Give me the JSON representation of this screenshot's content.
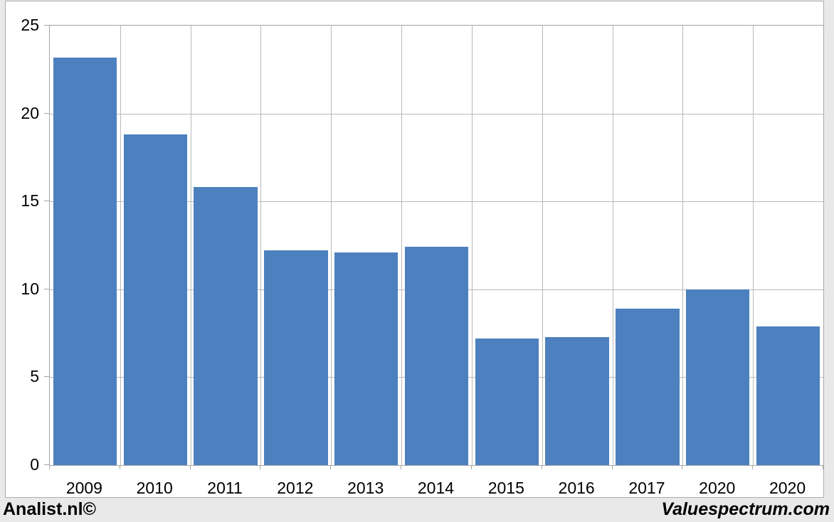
{
  "chart_data": {
    "type": "bar",
    "categories": [
      "2009",
      "2010",
      "2011",
      "2012",
      "2013",
      "2014",
      "2015",
      "2016",
      "2017",
      "2020",
      "2020"
    ],
    "values": [
      23.2,
      18.8,
      15.8,
      12.2,
      12.1,
      12.4,
      7.2,
      7.3,
      8.9,
      10.0,
      7.9
    ],
    "title": "",
    "xlabel": "",
    "ylabel": "",
    "ylim": [
      0,
      25
    ],
    "yticks": [
      0,
      5,
      10,
      15,
      20,
      25
    ],
    "grid": true,
    "legend_position": "none",
    "bar_color": "#4d80be",
    "gridline_color": "#b9b9b9",
    "axis_color": "#a6a6a6",
    "plot_background": "#ffffff",
    "page_background": "#e9e9e9"
  },
  "footer": {
    "left_brand": "Analist.nl©",
    "right_brand": "Valuespectrum.com"
  }
}
